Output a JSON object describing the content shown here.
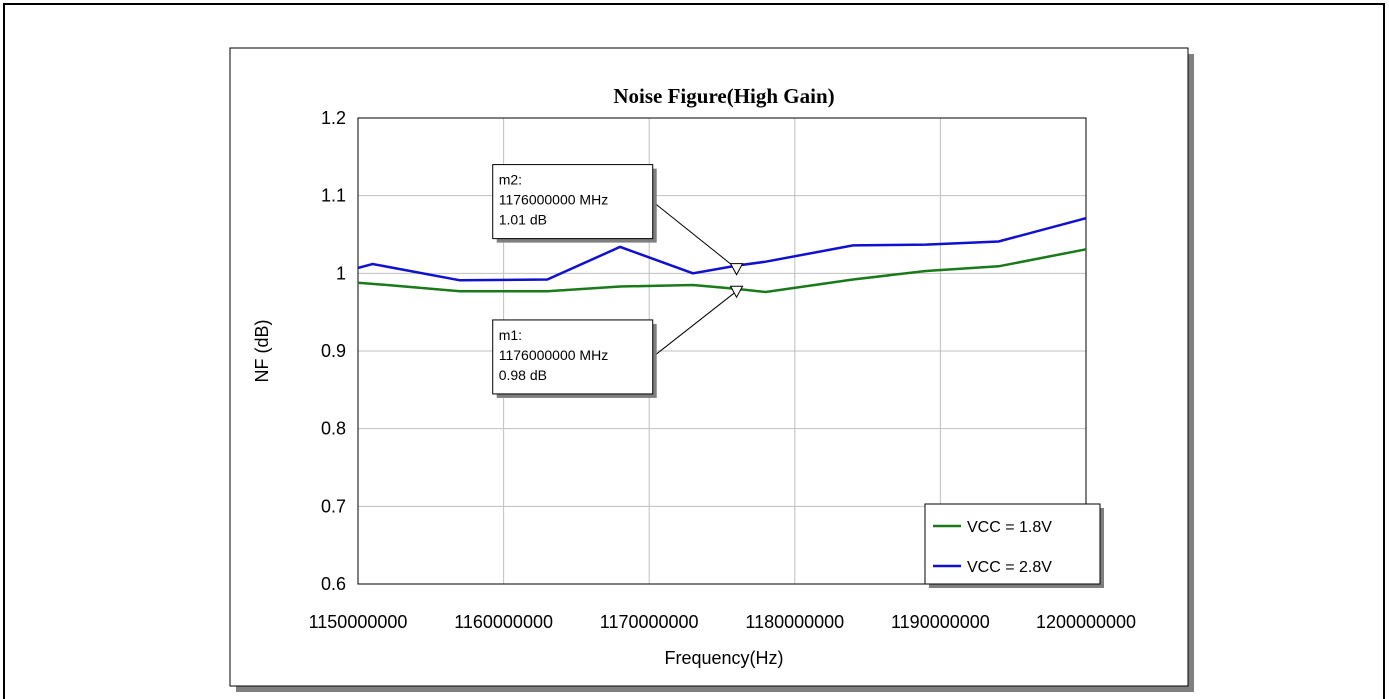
{
  "chart_data": {
    "type": "line",
    "title": "Noise Figure(High Gain)",
    "xlabel": "Frequency(Hz)",
    "ylabel": "NF (dB)",
    "xlim": [
      1150000000,
      1200000000
    ],
    "ylim": [
      0.6,
      1.2
    ],
    "xticks": [
      1150000000,
      1160000000,
      1170000000,
      1180000000,
      1190000000,
      1200000000
    ],
    "xtick_labels": [
      "1150000000",
      "1160000000",
      "1170000000",
      "1180000000",
      "1190000000",
      "1200000000"
    ],
    "yticks": [
      0.6,
      0.7,
      0.8,
      0.9,
      1.0,
      1.1,
      1.2
    ],
    "ytick_labels": [
      "0.6",
      "0.7",
      "0.8",
      "0.9",
      "1",
      "1.1",
      "1.2"
    ],
    "grid": true,
    "legend_position": "bottom-right",
    "series": [
      {
        "name": "VCC = 1.8V",
        "color": "#1a7a1a",
        "x": [
          1150000000,
          1152000000,
          1157000000,
          1163000000,
          1168000000,
          1173000000,
          1176000000,
          1178000000,
          1184000000,
          1189000000,
          1194000000,
          1200000000
        ],
        "y": [
          0.988,
          0.985,
          0.977,
          0.977,
          0.983,
          0.985,
          0.98,
          0.976,
          0.992,
          1.003,
          1.009,
          1.031
        ]
      },
      {
        "name": "VCC = 2.8V",
        "color": "#1010d0",
        "x": [
          1150000000,
          1151000000,
          1157000000,
          1163000000,
          1168000000,
          1173000000,
          1176000000,
          1178000000,
          1184000000,
          1189000000,
          1194000000,
          1200000000
        ],
        "y": [
          1.007,
          1.012,
          0.991,
          0.992,
          1.034,
          1.0,
          1.01,
          1.015,
          1.036,
          1.037,
          1.041,
          1.071
        ]
      }
    ],
    "markers": [
      {
        "id": "m2",
        "name": "m2:",
        "x_label": "1176000000 MHz",
        "y_label": "1.01 dB",
        "x": 1176000000,
        "y": 1.006,
        "box_x": 1162000000,
        "box_y": 1.14
      },
      {
        "id": "m1",
        "name": "m1:",
        "x_label": "1176000000 MHz",
        "y_label": "0.98 dB",
        "x": 1176000000,
        "y": 0.977,
        "box_x": 1162000000,
        "box_y": 0.94
      }
    ]
  }
}
